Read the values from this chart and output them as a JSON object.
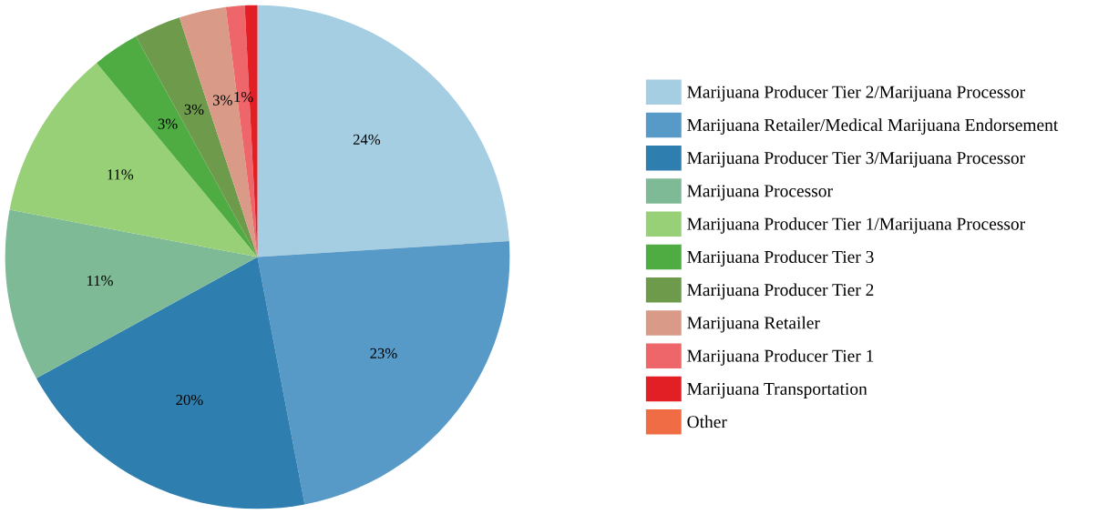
{
  "chart_data": {
    "type": "pie",
    "categories": [
      "Marijuana Producer Tier 2/Marijuana Processor",
      "Marijuana Retailer/Medical Marijuana Endorsement",
      "Marijuana Producer Tier 3/Marijuana Processor",
      "Marijuana Processor",
      "Marijuana Producer Tier 1/Marijuana Processor",
      "Marijuana Producer Tier 3",
      "Marijuana Producer Tier 2",
      "Marijuana Retailer",
      "Marijuana Producer Tier 1",
      "Marijuana Transportation",
      "Other"
    ],
    "values": [
      24,
      23,
      20,
      11,
      11,
      3,
      3,
      3,
      1.2,
      0.8,
      0
    ],
    "value_labels": [
      "24%",
      "23%",
      "20%",
      "11%",
      "11%",
      "3%",
      "3%",
      "3%",
      "1%",
      null,
      null
    ],
    "colors": [
      "#a6cee3",
      "#5799c7",
      "#2f7eb0",
      "#7fba96",
      "#98d077",
      "#4eac42",
      "#6d9b4b",
      "#d99a88",
      "#ee656a",
      "#e31f26",
      "#ef6c45"
    ],
    "legend": "right"
  }
}
